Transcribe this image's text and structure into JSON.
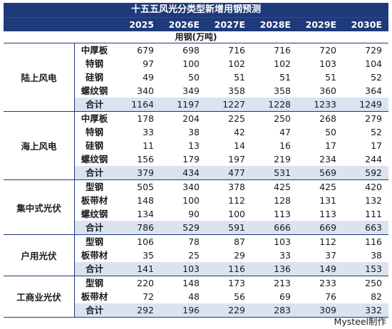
{
  "title": "十五五风光分类型新增用钢预测",
  "years": [
    "2025",
    "2026E",
    "2027E",
    "2028E",
    "2029E",
    "2030E"
  ],
  "unit": "用钢(万吨)",
  "groups": [
    {
      "name": "陆上风电",
      "rows": [
        {
          "label": "中厚板",
          "values": [
            "679",
            "698",
            "716",
            "716",
            "720",
            "729"
          ]
        },
        {
          "label": "特钢",
          "values": [
            "97",
            "100",
            "102",
            "102",
            "103",
            "104"
          ]
        },
        {
          "label": "硅钢",
          "values": [
            "49",
            "50",
            "51",
            "51",
            "51",
            "52"
          ]
        },
        {
          "label": "螺纹钢",
          "values": [
            "340",
            "349",
            "358",
            "358",
            "360",
            "364"
          ]
        },
        {
          "label": "合计",
          "values": [
            "1164",
            "1197",
            "1227",
            "1228",
            "1233",
            "1249"
          ],
          "total": true
        }
      ]
    },
    {
      "name": "海上风电",
      "rows": [
        {
          "label": "中厚板",
          "values": [
            "178",
            "204",
            "225",
            "250",
            "268",
            "279"
          ]
        },
        {
          "label": "特钢",
          "values": [
            "33",
            "38",
            "42",
            "47",
            "50",
            "52"
          ]
        },
        {
          "label": "硅钢",
          "values": [
            "11",
            "13",
            "14",
            "16",
            "17",
            "17"
          ]
        },
        {
          "label": "螺纹钢",
          "values": [
            "156",
            "179",
            "197",
            "219",
            "234",
            "244"
          ]
        },
        {
          "label": "合计",
          "values": [
            "379",
            "434",
            "477",
            "531",
            "569",
            "592"
          ],
          "total": true
        }
      ]
    },
    {
      "name": "集中式光伏",
      "rows": [
        {
          "label": "型钢",
          "values": [
            "505",
            "340",
            "378",
            "425",
            "425",
            "420"
          ]
        },
        {
          "label": "板带材",
          "values": [
            "148",
            "100",
            "112",
            "128",
            "131",
            "132"
          ]
        },
        {
          "label": "螺纹钢",
          "values": [
            "134",
            "90",
            "100",
            "113",
            "113",
            "111"
          ]
        },
        {
          "label": "合计",
          "values": [
            "786",
            "529",
            "591",
            "666",
            "669",
            "663"
          ],
          "total": true
        }
      ]
    },
    {
      "name": "户用光伏",
      "rows": [
        {
          "label": "型钢",
          "values": [
            "106",
            "78",
            "87",
            "103",
            "112",
            "116"
          ]
        },
        {
          "label": "板带材",
          "values": [
            "35",
            "25",
            "29",
            "33",
            "37",
            "38"
          ]
        },
        {
          "label": "合计",
          "values": [
            "141",
            "103",
            "116",
            "136",
            "149",
            "153"
          ],
          "total": true
        }
      ]
    },
    {
      "name": "工商业光伏",
      "rows": [
        {
          "label": "型钢",
          "values": [
            "220",
            "148",
            "173",
            "213",
            "233",
            "250"
          ]
        },
        {
          "label": "板带材",
          "values": [
            "72",
            "48",
            "56",
            "69",
            "76",
            "82"
          ]
        },
        {
          "label": "合计",
          "values": [
            "292",
            "196",
            "229",
            "283",
            "309",
            "332"
          ],
          "total": true
        }
      ]
    }
  ],
  "footer": "Mysteel制作"
}
